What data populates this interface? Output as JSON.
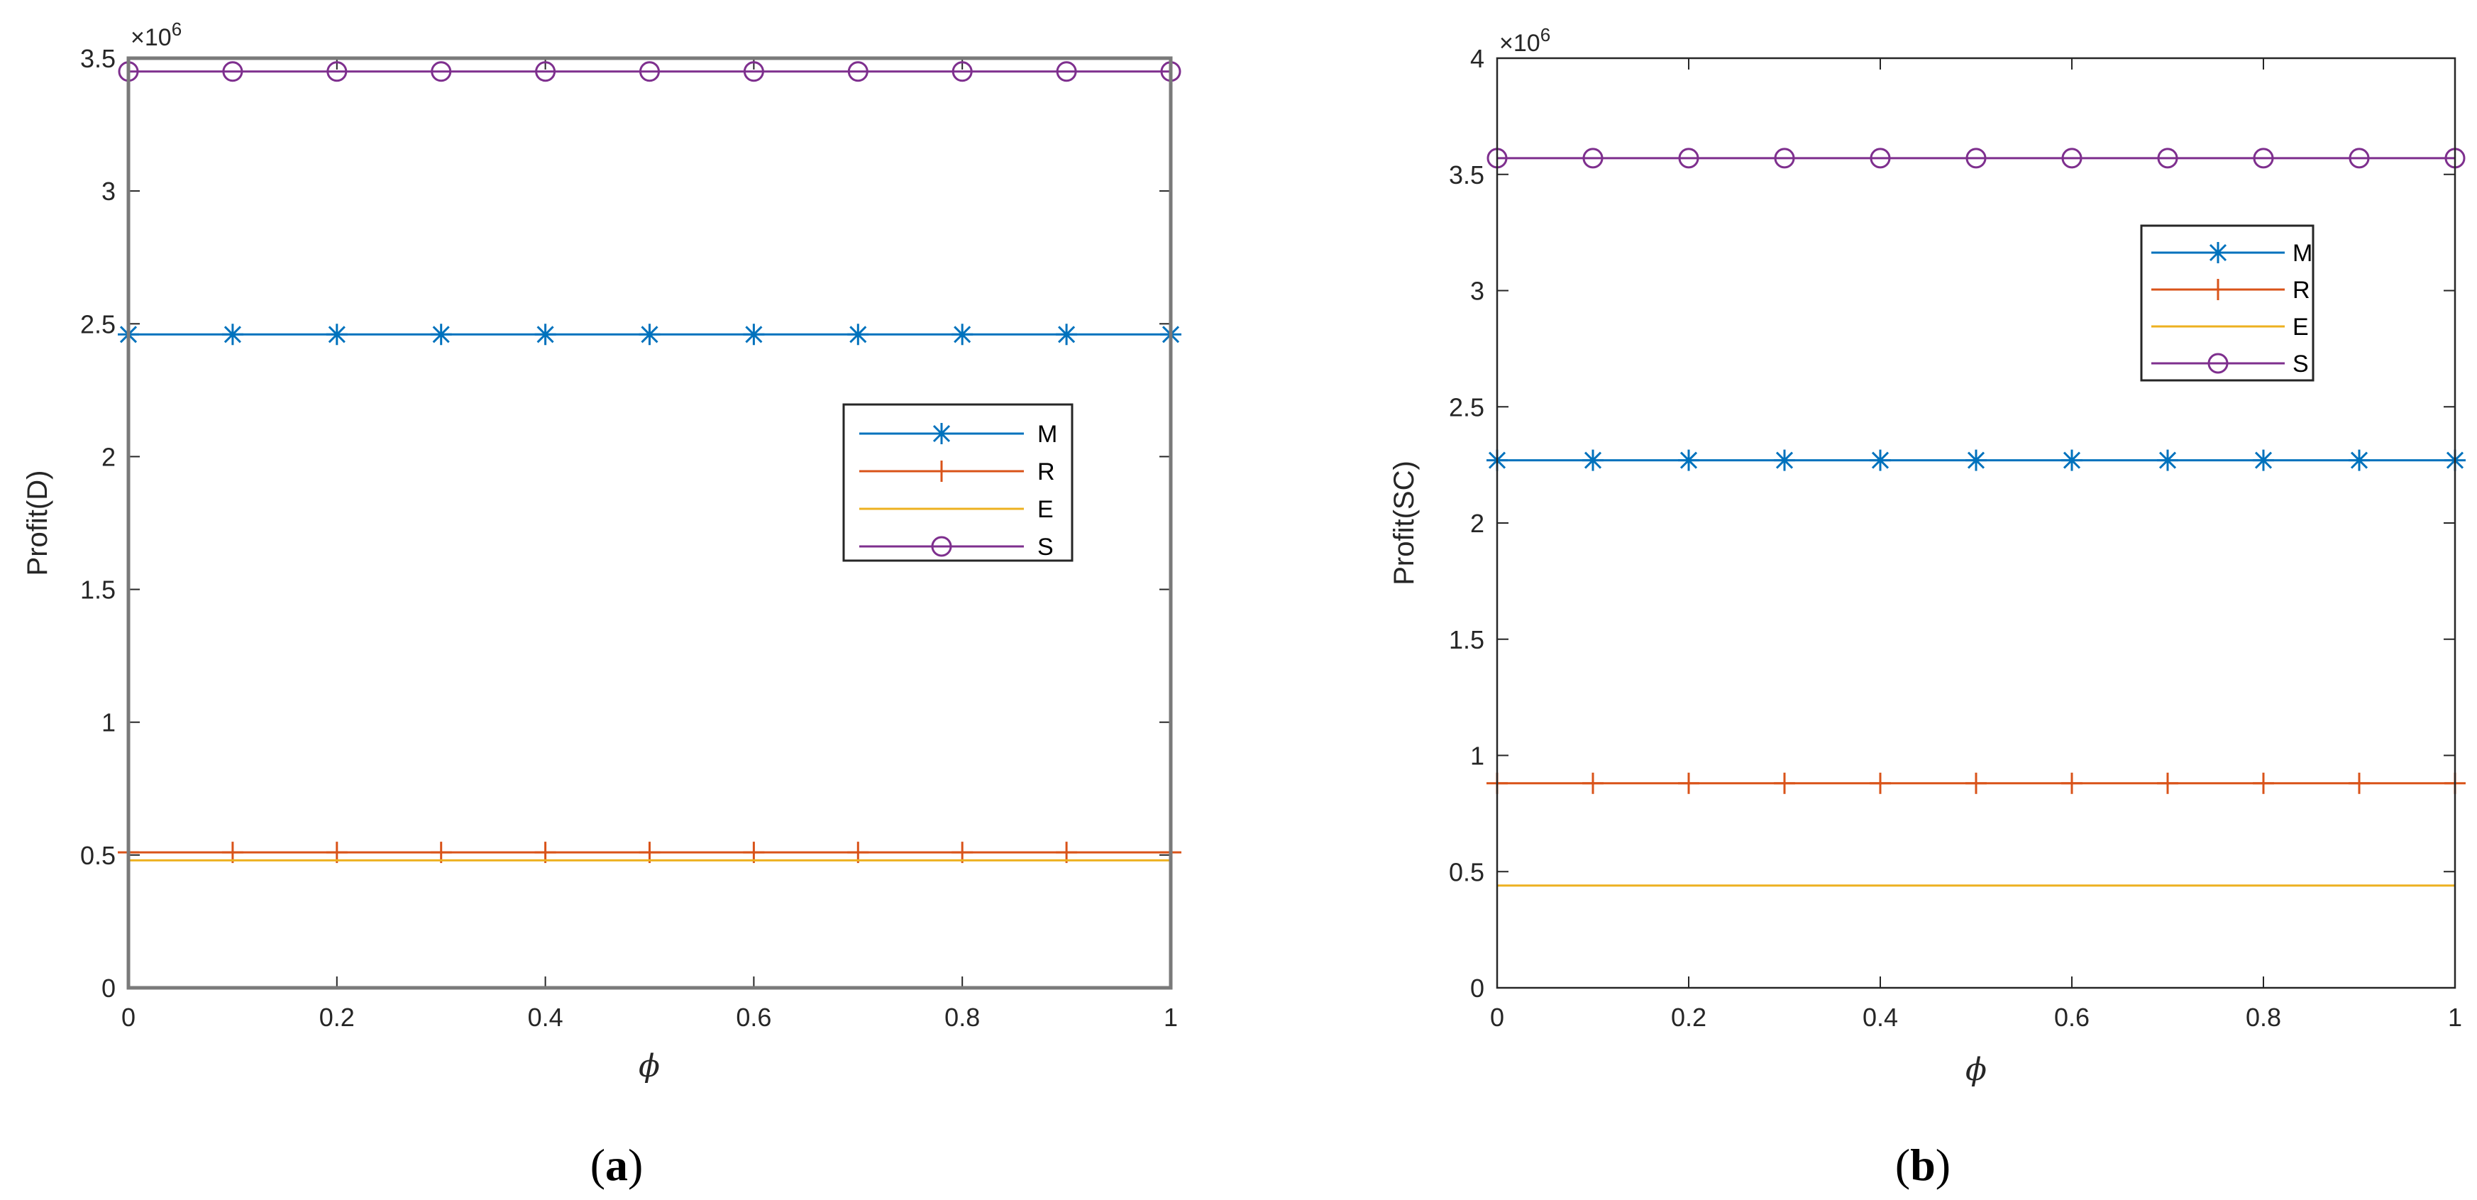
{
  "chart_data": [
    {
      "type": "line",
      "caption_open": "(",
      "caption_letter": "a",
      "caption_close": ")",
      "ylabel": "Profit(D)",
      "xlabel": "ϕ",
      "exponent_label": "×10",
      "exponent_power": "6",
      "xlim": [
        0,
        1
      ],
      "ylim": [
        0,
        3.5
      ],
      "xticks": [
        0,
        0.2,
        0.4,
        0.6,
        0.8,
        1
      ],
      "xtick_labels": [
        "0",
        "0.2",
        "0.4",
        "0.6",
        "0.8",
        "1"
      ],
      "yticks": [
        0,
        0.5,
        1,
        1.5,
        2,
        2.5,
        3,
        3.5
      ],
      "ytick_labels": [
        "0",
        "0.5",
        "1",
        "1.5",
        "2",
        "2.5",
        "3",
        "3.5"
      ],
      "legend_position": "center-right",
      "x": [
        0,
        0.1,
        0.2,
        0.3,
        0.4,
        0.5,
        0.6,
        0.7,
        0.8,
        0.9,
        1
      ],
      "series": [
        {
          "name": "M",
          "color": "#0072BD",
          "marker": "asterisk",
          "values": [
            2.46,
            2.46,
            2.46,
            2.46,
            2.46,
            2.46,
            2.46,
            2.46,
            2.46,
            2.46,
            2.46
          ]
        },
        {
          "name": "R",
          "color": "#D95319",
          "marker": "plus",
          "values": [
            0.51,
            0.51,
            0.51,
            0.51,
            0.51,
            0.51,
            0.51,
            0.51,
            0.51,
            0.51,
            0.51
          ]
        },
        {
          "name": "E",
          "color": "#EDB120",
          "marker": "none",
          "values": [
            0.48,
            0.48,
            0.48,
            0.48,
            0.48,
            0.48,
            0.48,
            0.48,
            0.48,
            0.48,
            0.48
          ]
        },
        {
          "name": "S",
          "color": "#7E2F8E",
          "marker": "circle",
          "values": [
            3.45,
            3.45,
            3.45,
            3.45,
            3.45,
            3.45,
            3.45,
            3.45,
            3.45,
            3.45,
            3.45
          ]
        }
      ]
    },
    {
      "type": "line",
      "caption_open": "(",
      "caption_letter": "b",
      "caption_close": ")",
      "ylabel": "Profit(SC)",
      "xlabel": "ϕ",
      "exponent_label": "×10",
      "exponent_power": "6",
      "xlim": [
        0,
        1
      ],
      "ylim": [
        0,
        4
      ],
      "xticks": [
        0,
        0.2,
        0.4,
        0.6,
        0.8,
        1
      ],
      "xtick_labels": [
        "0",
        "0.2",
        "0.4",
        "0.6",
        "0.8",
        "1"
      ],
      "yticks": [
        0,
        0.5,
        1,
        1.5,
        2,
        2.5,
        3,
        3.5,
        4
      ],
      "ytick_labels": [
        "0",
        "0.5",
        "1",
        "1.5",
        "2",
        "2.5",
        "3",
        "3.5",
        "4"
      ],
      "legend_position": "top-right",
      "x": [
        0,
        0.1,
        0.2,
        0.3,
        0.4,
        0.5,
        0.6,
        0.7,
        0.8,
        0.9,
        1
      ],
      "series": [
        {
          "name": "M",
          "color": "#0072BD",
          "marker": "asterisk",
          "values": [
            2.27,
            2.27,
            2.27,
            2.27,
            2.27,
            2.27,
            2.27,
            2.27,
            2.27,
            2.27,
            2.27
          ]
        },
        {
          "name": "R",
          "color": "#D95319",
          "marker": "plus",
          "values": [
            0.88,
            0.88,
            0.88,
            0.88,
            0.88,
            0.88,
            0.88,
            0.88,
            0.88,
            0.88,
            0.88
          ]
        },
        {
          "name": "E",
          "color": "#EDB120",
          "marker": "none",
          "values": [
            0.44,
            0.44,
            0.44,
            0.44,
            0.44,
            0.44,
            0.44,
            0.44,
            0.44,
            0.44,
            0.44
          ]
        },
        {
          "name": "S",
          "color": "#7E2F8E",
          "marker": "circle",
          "values": [
            3.57,
            3.57,
            3.57,
            3.57,
            3.57,
            3.57,
            3.57,
            3.57,
            3.57,
            3.57,
            3.57
          ]
        }
      ]
    }
  ]
}
